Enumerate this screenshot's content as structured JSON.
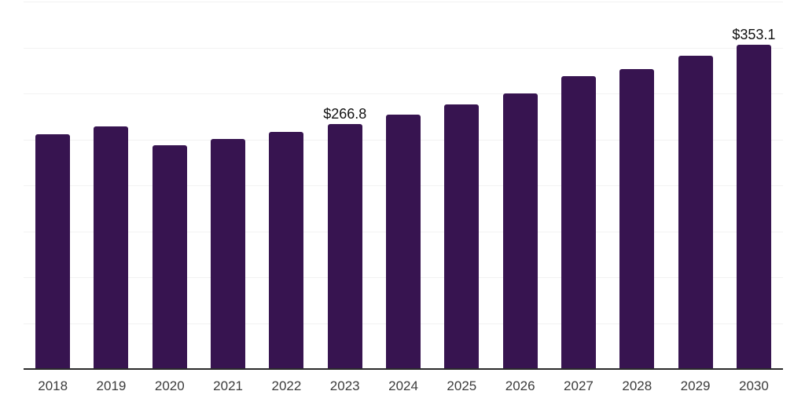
{
  "chart_data": {
    "type": "bar",
    "categories": [
      "2018",
      "2019",
      "2020",
      "2021",
      "2022",
      "2023",
      "2024",
      "2025",
      "2026",
      "2027",
      "2028",
      "2029",
      "2030"
    ],
    "values": [
      255.3,
      264.2,
      243.3,
      250.4,
      258.0,
      266.8,
      277.2,
      288.1,
      300.2,
      319.2,
      326.5,
      341.2,
      353.1
    ],
    "data_labels": [
      "",
      "",
      "",
      "",
      "",
      "$266.8",
      "",
      "",
      "",
      "",
      "",
      "",
      "$353.1"
    ],
    "xlabel": "",
    "ylabel": "",
    "ylim": [
      0,
      400
    ],
    "gridline_step": 50,
    "grid": true,
    "legend": false,
    "colors": {
      "bar": "#371450",
      "gridline": "#f2f2f2",
      "axis_line": "#2b2b2b",
      "tick_label": "#3c3c3c",
      "data_label": "#111111",
      "background": "#ffffff"
    }
  }
}
